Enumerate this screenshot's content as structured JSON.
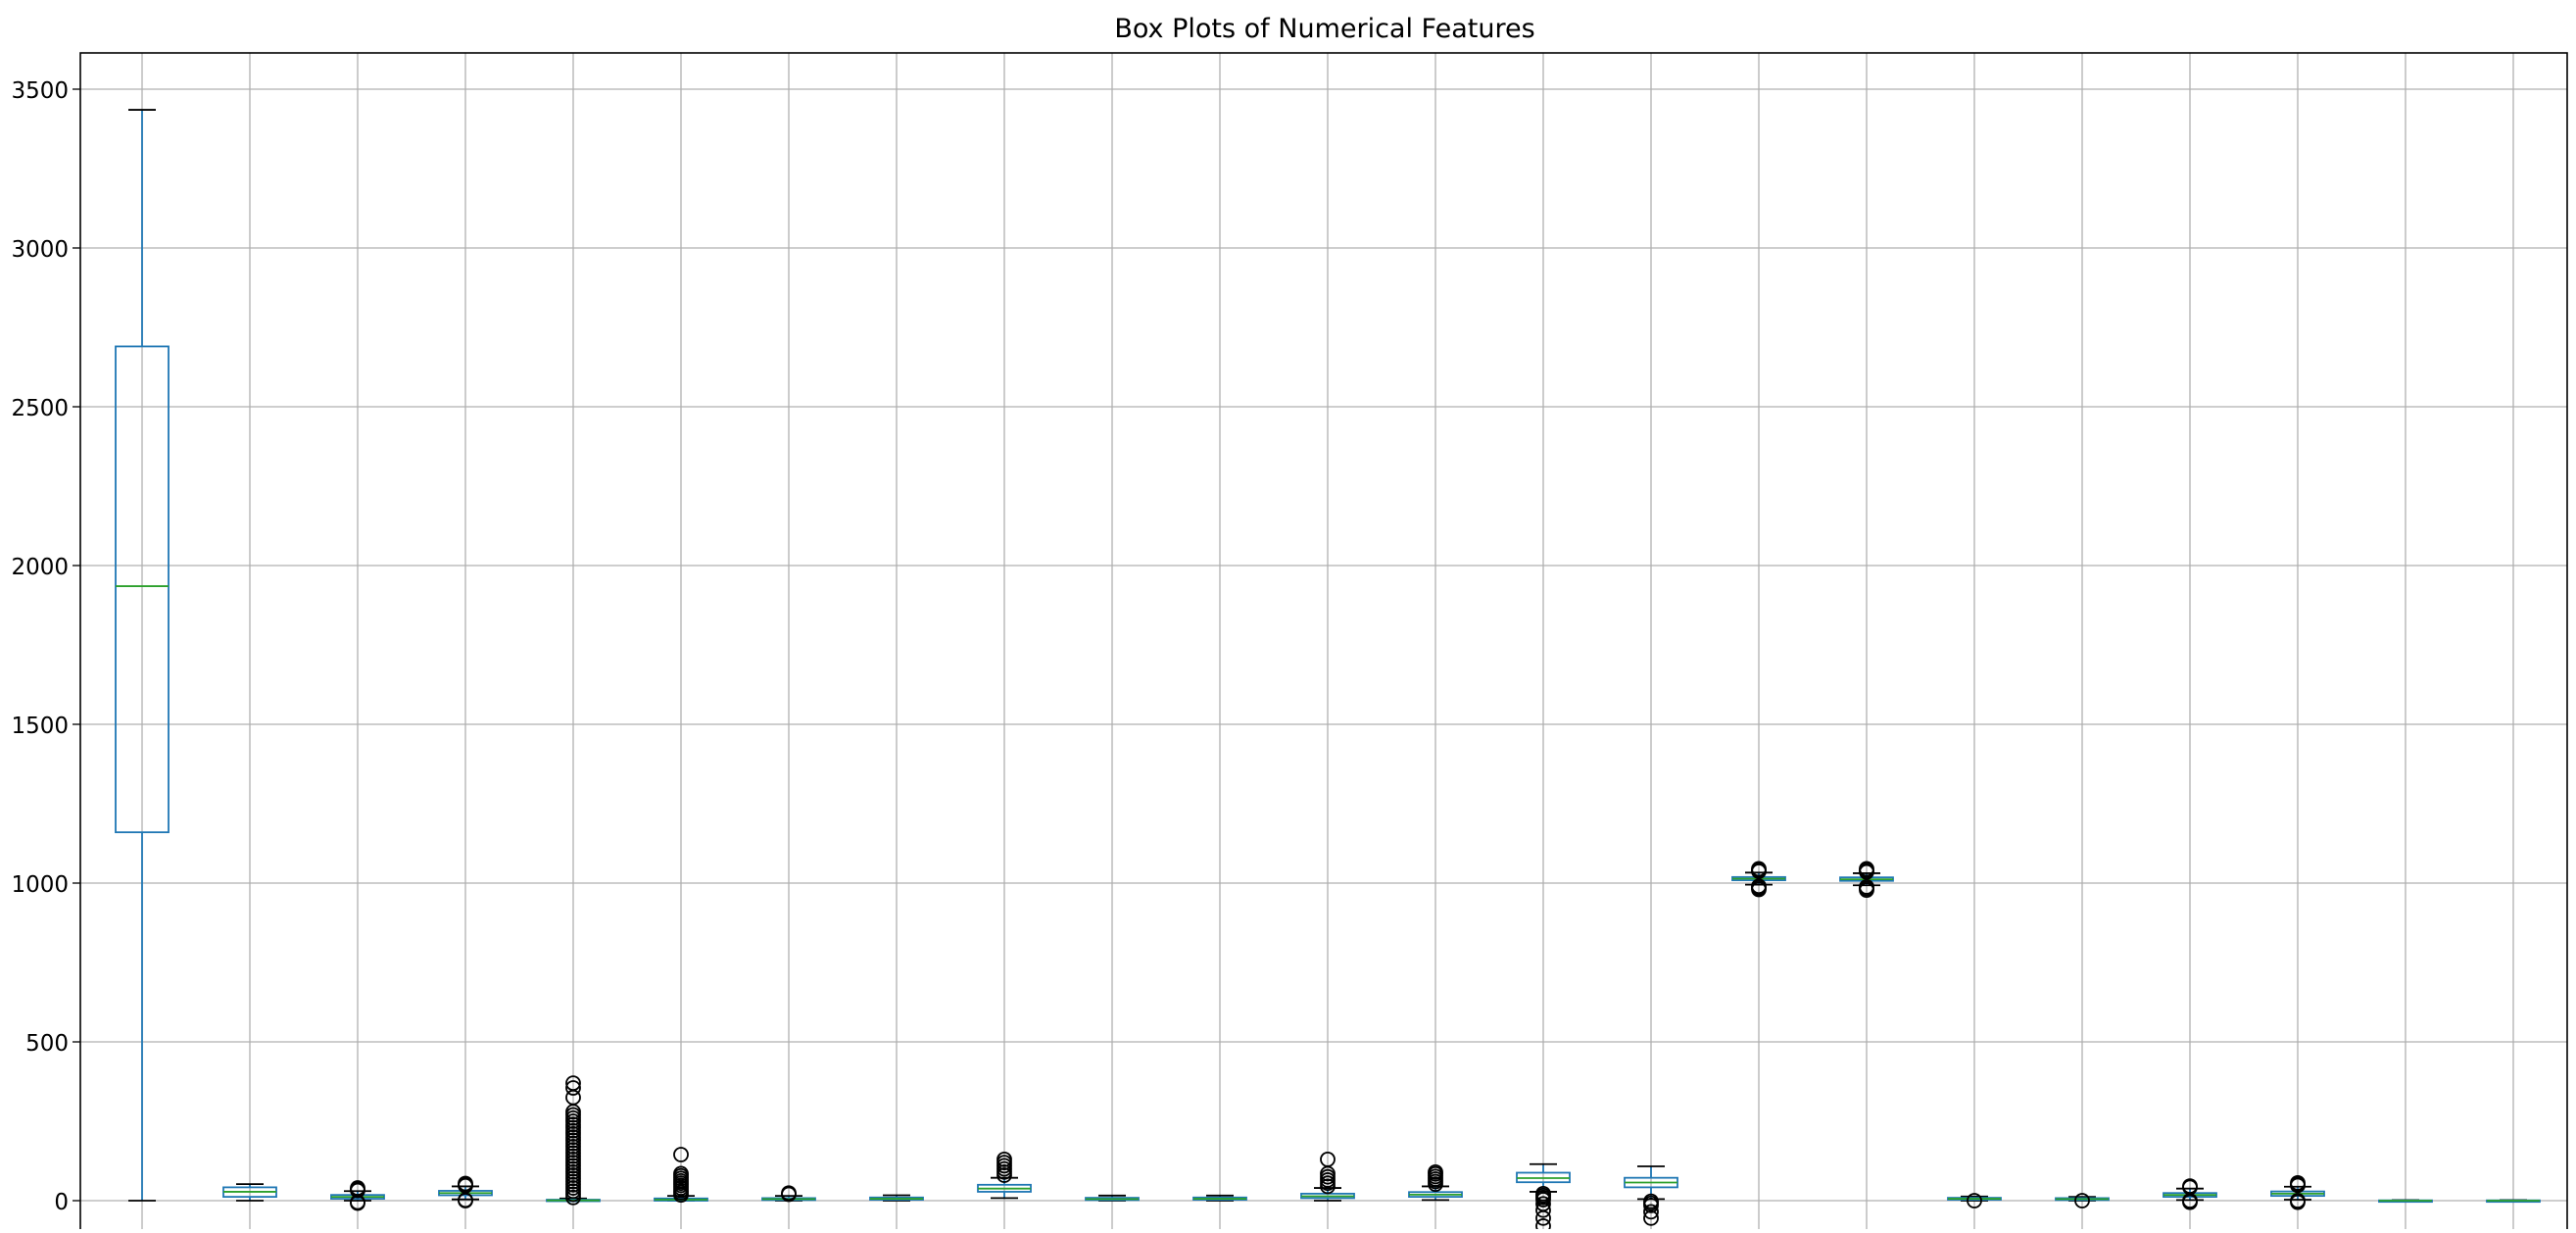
{
  "chart_data": {
    "type": "box",
    "title": "Box Plots of Numerical Features",
    "xlabel": "",
    "ylabel": "",
    "ylim": [
      -100,
      3560
    ],
    "y_ticks": [
      0,
      500,
      1000,
      1500,
      2000,
      2500,
      3000,
      3500
    ],
    "y_tick_labels": [
      "0",
      "500",
      "1000",
      "1500",
      "2000",
      "2500",
      "3000",
      "3500"
    ],
    "grid": true,
    "colors": {
      "box": "#1f77b4",
      "median": "#2ca02c",
      "whisker": "#1f77b4",
      "cap": "#000000",
      "flier": "#000000",
      "grid": "#b0b0b0"
    },
    "boxes": [
      {
        "q1": 1160,
        "median": 1935,
        "q3": 2690,
        "whisker_low": 0,
        "whisker_high": 3435,
        "fliers": []
      },
      {
        "q1": 12,
        "median": 28,
        "q3": 42,
        "whisker_low": 0,
        "whisker_high": 52,
        "fliers": []
      },
      {
        "q1": 6,
        "median": 12,
        "q3": 18,
        "whisker_low": 0,
        "whisker_high": 30,
        "fliers": [
          -8,
          -5,
          32,
          36,
          40
        ]
      },
      {
        "q1": 17,
        "median": 24,
        "q3": 31,
        "whisker_low": 4,
        "whisker_high": 45,
        "fliers": [
          0,
          2,
          47,
          50,
          54
        ]
      },
      {
        "q1": 0,
        "median": 1,
        "q3": 3,
        "whisker_low": 0,
        "whisker_high": 7,
        "fliers": [
          10,
          20,
          30,
          40,
          50,
          60,
          70,
          80,
          90,
          100,
          110,
          120,
          130,
          140,
          150,
          160,
          170,
          180,
          190,
          200,
          210,
          220,
          230,
          240,
          250,
          260,
          270,
          280,
          325,
          355,
          370
        ]
      },
      {
        "q1": 0,
        "median": 3,
        "q3": 7,
        "whisker_low": 0,
        "whisker_high": 15,
        "fliers": [
          18,
          25,
          32,
          40,
          48,
          55,
          62,
          70,
          78,
          85,
          145
        ]
      },
      {
        "q1": 2,
        "median": 5,
        "q3": 8,
        "whisker_low": 0,
        "whisker_high": 15,
        "fliers": [
          20,
          24
        ]
      },
      {
        "q1": 3,
        "median": 6,
        "q3": 10,
        "whisker_low": 0,
        "whisker_high": 17,
        "fliers": []
      },
      {
        "q1": 28,
        "median": 38,
        "q3": 50,
        "whisker_low": 8,
        "whisker_high": 72,
        "fliers": [
          80,
          90,
          100,
          110,
          120,
          130
        ]
      },
      {
        "q1": 2,
        "median": 5,
        "q3": 9,
        "whisker_low": 0,
        "whisker_high": 16,
        "fliers": []
      },
      {
        "q1": 3,
        "median": 6,
        "q3": 10,
        "whisker_low": 0,
        "whisker_high": 16,
        "fliers": []
      },
      {
        "q1": 8,
        "median": 14,
        "q3": 22,
        "whisker_low": 0,
        "whisker_high": 40,
        "fliers": [
          45,
          55,
          65,
          75,
          85,
          130
        ]
      },
      {
        "q1": 12,
        "median": 19,
        "q3": 27,
        "whisker_low": 2,
        "whisker_high": 45,
        "fliers": [
          52,
          60,
          68,
          76,
          84,
          90
        ]
      },
      {
        "q1": 58,
        "median": 71,
        "q3": 88,
        "whisker_low": 28,
        "whisker_high": 115,
        "fliers": [
          22,
          16,
          10,
          3,
          -10,
          -30,
          -55,
          -80
        ]
      },
      {
        "q1": 42,
        "median": 57,
        "q3": 72,
        "whisker_low": 5,
        "whisker_high": 108,
        "fliers": [
          -2,
          -8,
          -15,
          -35,
          -55
        ]
      },
      {
        "q1": 1009,
        "median": 1014,
        "q3": 1019,
        "whisker_low": 995,
        "whisker_high": 1033,
        "fliers": [
          980,
          985,
          990,
          1037,
          1041,
          1045
        ]
      },
      {
        "q1": 1007,
        "median": 1012,
        "q3": 1018,
        "whisker_low": 993,
        "whisker_high": 1031,
        "fliers": [
          978,
          983,
          988,
          1035,
          1040,
          1045
        ]
      },
      {
        "q1": 3,
        "median": 6,
        "q3": 9,
        "whisker_low": 0,
        "whisker_high": 13,
        "fliers": [
          0
        ]
      },
      {
        "q1": 2,
        "median": 5,
        "q3": 8,
        "whisker_low": 0,
        "whisker_high": 12,
        "fliers": [
          0
        ]
      },
      {
        "q1": 12,
        "median": 18,
        "q3": 24,
        "whisker_low": 2,
        "whisker_high": 38,
        "fliers": [
          -5,
          0,
          42,
          46
        ]
      },
      {
        "q1": 15,
        "median": 22,
        "q3": 29,
        "whisker_low": 3,
        "whisker_high": 44,
        "fliers": [
          -5,
          0,
          48,
          52,
          56
        ]
      },
      {
        "q1": 0,
        "median": 0,
        "q3": 1,
        "whisker_low": 0,
        "whisker_high": 2,
        "fliers": []
      },
      {
        "q1": 0,
        "median": 0,
        "q3": 1,
        "whisker_low": 0,
        "whisker_high": 2,
        "fliers": []
      }
    ]
  }
}
